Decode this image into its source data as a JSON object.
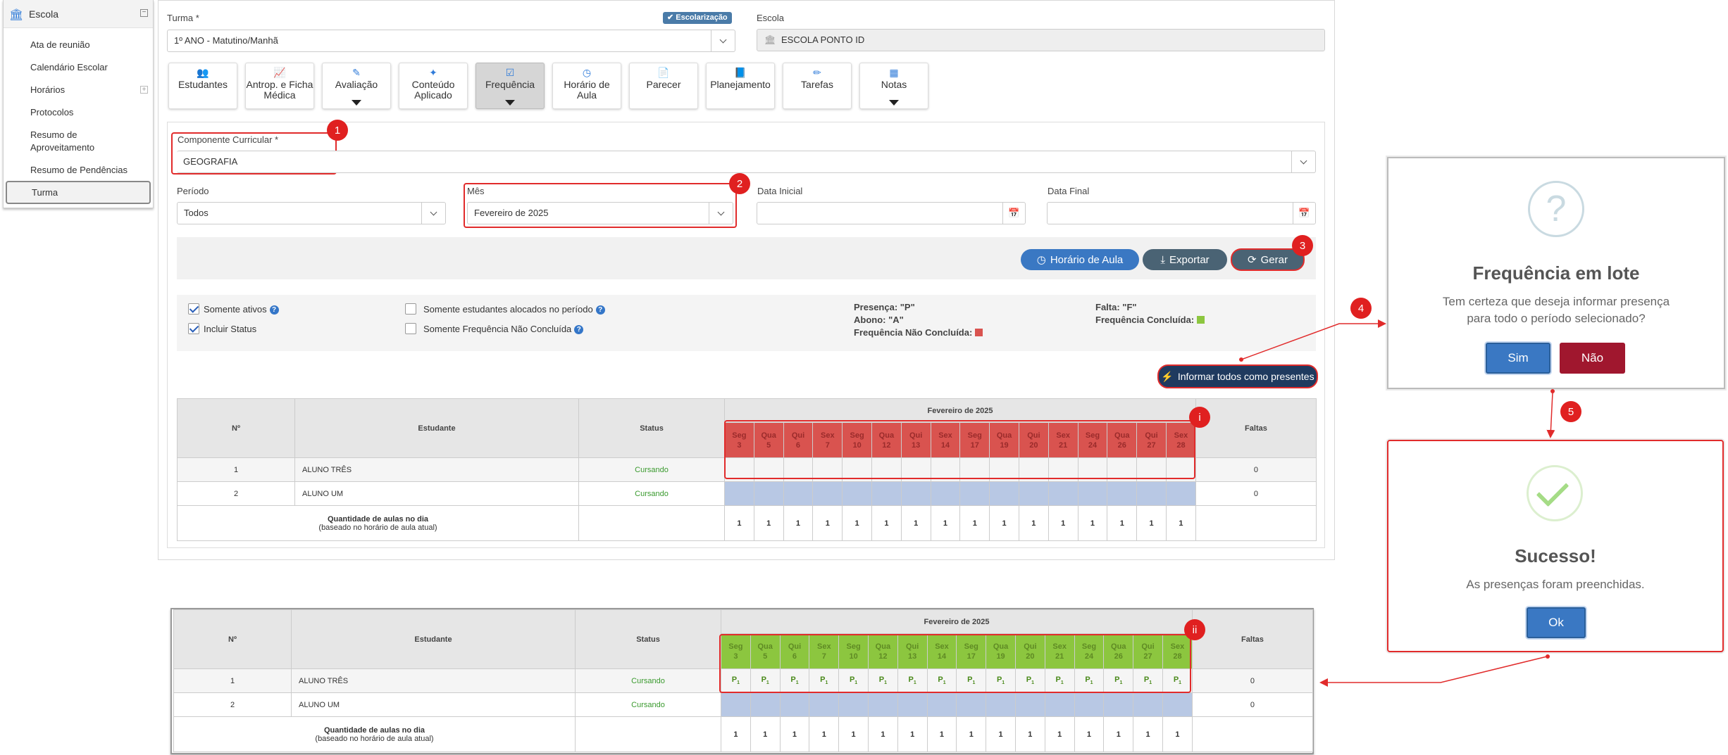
{
  "sidebar": {
    "title": "Escola",
    "items": [
      "Ata de reunião",
      "Calendário Escolar",
      "Horários",
      "Protocolos",
      "Resumo de Aproveitamento",
      "Resumo de Pendências",
      "Turma"
    ]
  },
  "form": {
    "turma_label": "Turma *",
    "turma_value": "1º ANO - Matutino/Manhã",
    "escolarizacao_tag": "Escolarização",
    "escola_label": "Escola",
    "escola_value": "ESCOLA PONTO ID",
    "componente_label": "Componente Curricular *",
    "componente_value": "GEOGRAFIA",
    "periodo_label": "Período",
    "periodo_value": "Todos",
    "mes_label": "Mês",
    "mes_value": "Fevereiro de 2025",
    "data_inicial_label": "Data Inicial",
    "data_final_label": "Data Final"
  },
  "nav_cards": [
    {
      "label": "Estudantes",
      "icon": "users-icon"
    },
    {
      "label": "Antrop. e Ficha Médica",
      "icon": "chart-icon"
    },
    {
      "label": "Avaliação",
      "icon": "edit-icon"
    },
    {
      "label": "Conteúdo Aplicado",
      "icon": "magic-icon"
    },
    {
      "label": "Frequência",
      "icon": "check-square-icon"
    },
    {
      "label": "Horário de Aula",
      "icon": "clock-icon"
    },
    {
      "label": "Parecer",
      "icon": "file-icon"
    },
    {
      "label": "Planejamento",
      "icon": "book-icon"
    },
    {
      "label": "Tarefas",
      "icon": "pencil-icon"
    },
    {
      "label": "Notas",
      "icon": "table-icon"
    }
  ],
  "buttons": {
    "horario": "Horário de Aula",
    "exportar": "Exportar",
    "gerar": "Gerar",
    "informar": "Informar todos como presentes"
  },
  "filters": {
    "somente_ativos": "Somente ativos",
    "incluir_status": "Incluir Status",
    "somente_alocados": "Somente estudantes alocados no período",
    "somente_nao_concluida": "Somente Frequência Não Concluída"
  },
  "legend": {
    "presenca": "Presença: \"P\"",
    "abono": "Abono: \"A\"",
    "nao_concluida": "Frequência Não Concluída:",
    "falta": "Falta: \"F\"",
    "concluida": "Frequência Concluída:"
  },
  "colors": {
    "red": "#d9534f",
    "green": "#8cc63f",
    "blue_btn": "#3a78c3",
    "dark_btn": "#4a6374",
    "danger": "#a0172e"
  },
  "table": {
    "col_n": "Nº",
    "col_estudante": "Estudante",
    "col_status": "Status",
    "month": "Fevereiro de 2025",
    "col_faltas": "Faltas",
    "days": [
      {
        "wd": "Seg",
        "d": "3"
      },
      {
        "wd": "Qua",
        "d": "5"
      },
      {
        "wd": "Qui",
        "d": "6"
      },
      {
        "wd": "Sex",
        "d": "7"
      },
      {
        "wd": "Seg",
        "d": "10"
      },
      {
        "wd": "Qua",
        "d": "12"
      },
      {
        "wd": "Qui",
        "d": "13"
      },
      {
        "wd": "Sex",
        "d": "14"
      },
      {
        "wd": "Seg",
        "d": "17"
      },
      {
        "wd": "Qua",
        "d": "19"
      },
      {
        "wd": "Qui",
        "d": "20"
      },
      {
        "wd": "Sex",
        "d": "21"
      },
      {
        "wd": "Seg",
        "d": "24"
      },
      {
        "wd": "Qua",
        "d": "26"
      },
      {
        "wd": "Qui",
        "d": "27"
      },
      {
        "wd": "Sex",
        "d": "28"
      }
    ],
    "rows": [
      {
        "n": "1",
        "name": "ALUNO TRÊS",
        "status": "Cursando",
        "faltas": "0"
      },
      {
        "n": "2",
        "name": "ALUNO UM",
        "status": "Cursando",
        "faltas": "0"
      }
    ],
    "qty_label": "Quantidade de aulas no dia",
    "qty_sub": "(baseado no horário de aula atual)",
    "qty_value": "1",
    "presence_mark": "P",
    "presence_sub": "1"
  },
  "dialog_confirm": {
    "icon": "?",
    "title": "Frequência em lote",
    "text": "Tem certeza que deseja informar presença para todo o período selecionado?",
    "yes": "Sim",
    "no": "Não"
  },
  "dialog_success": {
    "title": "Sucesso!",
    "text": "As presenças foram preenchidas.",
    "ok": "Ok"
  },
  "steps": [
    "1",
    "2",
    "3",
    "4",
    "5",
    "i",
    "ii"
  ]
}
